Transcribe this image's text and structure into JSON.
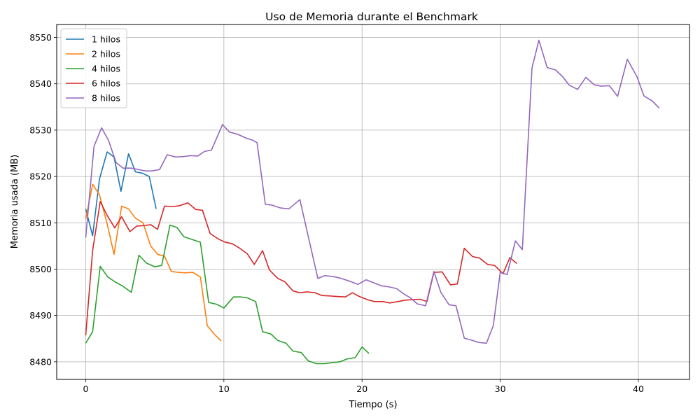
{
  "chart_data": {
    "type": "line",
    "title": "Uso de Memoria durante el Benchmark",
    "xlabel": "Tiempo (s)",
    "ylabel": "Memoria usada (MB)",
    "xlim": [
      -2.1,
      43.7
    ],
    "ylim": [
      8476.2,
      8552.8
    ],
    "xticks": [
      0,
      10,
      20,
      30,
      40
    ],
    "yticks": [
      8480,
      8490,
      8500,
      8510,
      8520,
      8530,
      8540,
      8550
    ],
    "grid": true,
    "legend_position": "top-left",
    "series": [
      {
        "name": "1 hilos",
        "color": "#1f77b4",
        "points": [
          [
            0,
            8513
          ],
          [
            0.5,
            8507.2
          ],
          [
            1.0,
            8519.5
          ],
          [
            1.55,
            8525.3
          ],
          [
            2.05,
            8524.2
          ],
          [
            2.55,
            8516.8
          ],
          [
            3.1,
            8524.9
          ],
          [
            3.6,
            8521
          ],
          [
            4.1,
            8520.7
          ],
          [
            4.6,
            8520
          ],
          [
            5.1,
            8513
          ]
        ]
      },
      {
        "name": "2 hilos",
        "color": "#ff7f0e",
        "points": [
          [
            0,
            8510.8
          ],
          [
            0.5,
            8518.3
          ],
          [
            1.0,
            8516
          ],
          [
            1.55,
            8509.8
          ],
          [
            2.05,
            8503.2
          ],
          [
            2.6,
            8513.6
          ],
          [
            3.1,
            8513
          ],
          [
            3.6,
            8511
          ],
          [
            4.15,
            8510
          ],
          [
            4.7,
            8505
          ],
          [
            5.2,
            8503.2
          ],
          [
            5.7,
            8502.8
          ],
          [
            6.2,
            8499.5
          ],
          [
            6.7,
            8499.3
          ],
          [
            7.2,
            8499.2
          ],
          [
            7.75,
            8499.3
          ],
          [
            8.3,
            8498.3
          ],
          [
            8.8,
            8487.8
          ],
          [
            9.3,
            8486
          ],
          [
            9.8,
            8484.5
          ]
        ]
      },
      {
        "name": "4 hilos",
        "color": "#2ca02c",
        "points": [
          [
            0,
            8484
          ],
          [
            0.5,
            8486.5
          ],
          [
            1.05,
            8500.6
          ],
          [
            1.6,
            8498.3
          ],
          [
            2.15,
            8497.2
          ],
          [
            2.7,
            8496.3
          ],
          [
            3.3,
            8495
          ],
          [
            3.85,
            8503
          ],
          [
            4.4,
            8501.3
          ],
          [
            5.0,
            8500.5
          ],
          [
            5.5,
            8500.8
          ],
          [
            6.1,
            8509.5
          ],
          [
            6.6,
            8509
          ],
          [
            7.1,
            8507
          ],
          [
            7.7,
            8506.4
          ],
          [
            8.3,
            8505.8
          ],
          [
            8.9,
            8492.8
          ],
          [
            9.5,
            8492.4
          ],
          [
            10.0,
            8491.6
          ],
          [
            10.7,
            8494
          ],
          [
            11.2,
            8494
          ],
          [
            11.7,
            8493.8
          ],
          [
            12.3,
            8493
          ],
          [
            12.8,
            8486.5
          ],
          [
            13.4,
            8486
          ],
          [
            13.9,
            8484.6
          ],
          [
            14.5,
            8484
          ],
          [
            15.0,
            8482.3
          ],
          [
            15.6,
            8482
          ],
          [
            16.1,
            8480.2
          ],
          [
            16.7,
            8479.6
          ],
          [
            17.3,
            8479.6
          ],
          [
            17.8,
            8479.8
          ],
          [
            18.4,
            8480
          ],
          [
            18.9,
            8480.6
          ],
          [
            19.5,
            8480.9
          ],
          [
            20.0,
            8483.2
          ],
          [
            20.5,
            8481.8
          ]
        ]
      },
      {
        "name": "6 hilos",
        "color": "#d62728",
        "points": [
          [
            0,
            8485.7
          ],
          [
            0.5,
            8504
          ],
          [
            1.05,
            8514.6
          ],
          [
            1.55,
            8511.6
          ],
          [
            2.1,
            8508.9
          ],
          [
            2.6,
            8511.3
          ],
          [
            3.2,
            8508.1
          ],
          [
            3.7,
            8509.3
          ],
          [
            4.25,
            8509.4
          ],
          [
            4.7,
            8509.6
          ],
          [
            5.2,
            8508.6
          ],
          [
            5.7,
            8513.6
          ],
          [
            6.3,
            8513.5
          ],
          [
            6.8,
            8513.7
          ],
          [
            7.4,
            8514.3
          ],
          [
            7.95,
            8512.9
          ],
          [
            8.45,
            8512.7
          ],
          [
            9.0,
            8507.7
          ],
          [
            9.6,
            8506.5
          ],
          [
            10.1,
            8505.8
          ],
          [
            10.6,
            8505.5
          ],
          [
            11.1,
            8504.6
          ],
          [
            11.7,
            8503.3
          ],
          [
            12.2,
            8501
          ],
          [
            12.8,
            8504
          ],
          [
            13.3,
            8499.8
          ],
          [
            13.9,
            8498
          ],
          [
            14.4,
            8497.3
          ],
          [
            15.0,
            8495.3
          ],
          [
            15.5,
            8494.9
          ],
          [
            16.0,
            8495.1
          ],
          [
            16.6,
            8494.9
          ],
          [
            17.1,
            8494.3
          ],
          [
            17.7,
            8494.2
          ],
          [
            18.2,
            8494.1
          ],
          [
            18.8,
            8494
          ],
          [
            19.3,
            8494.9
          ],
          [
            19.8,
            8494.1
          ],
          [
            20.4,
            8493.4
          ],
          [
            20.9,
            8493
          ],
          [
            21.5,
            8493
          ],
          [
            22.0,
            8492.7
          ],
          [
            22.6,
            8493
          ],
          [
            23.1,
            8493.3
          ],
          [
            23.6,
            8493.4
          ],
          [
            24.2,
            8493.5
          ],
          [
            24.7,
            8493
          ],
          [
            25.2,
            8499.3
          ],
          [
            25.8,
            8499.4
          ],
          [
            26.4,
            8496.6
          ],
          [
            26.9,
            8496.8
          ],
          [
            27.4,
            8504.5
          ],
          [
            28.0,
            8502.7
          ],
          [
            28.5,
            8502.4
          ],
          [
            29.1,
            8501
          ],
          [
            29.6,
            8500.8
          ],
          [
            30.2,
            8499
          ],
          [
            30.7,
            8502.5
          ],
          [
            31.2,
            8501.2
          ]
        ]
      },
      {
        "name": "8 hilos",
        "color": "#9467bd",
        "points": [
          [
            0,
            8506.8
          ],
          [
            0.6,
            8526.5
          ],
          [
            1.15,
            8530.5
          ],
          [
            1.65,
            8527.8
          ],
          [
            2.2,
            8523
          ],
          [
            2.7,
            8521.8
          ],
          [
            3.3,
            8521.8
          ],
          [
            3.8,
            8521.5
          ],
          [
            4.3,
            8521.2
          ],
          [
            4.8,
            8521.2
          ],
          [
            5.35,
            8521.5
          ],
          [
            5.9,
            8524.7
          ],
          [
            6.5,
            8524.2
          ],
          [
            7.1,
            8524.3
          ],
          [
            7.6,
            8524.5
          ],
          [
            8.1,
            8524.4
          ],
          [
            8.6,
            8525.4
          ],
          [
            9.1,
            8525.7
          ],
          [
            9.9,
            8531.2
          ],
          [
            10.4,
            8529.6
          ],
          [
            11.0,
            8529.1
          ],
          [
            11.6,
            8528.3
          ],
          [
            12.1,
            8527.8
          ],
          [
            12.4,
            8527.3
          ],
          [
            13.0,
            8514
          ],
          [
            13.5,
            8513.8
          ],
          [
            14.1,
            8513.2
          ],
          [
            14.7,
            8513
          ],
          [
            15.5,
            8515
          ],
          [
            16.8,
            8498
          ],
          [
            17.3,
            8498.6
          ],
          [
            17.9,
            8498.4
          ],
          [
            18.5,
            8498
          ],
          [
            19.1,
            8497.4
          ],
          [
            19.7,
            8496.7
          ],
          [
            20.3,
            8497.7
          ],
          [
            20.8,
            8497.1
          ],
          [
            21.4,
            8496.4
          ],
          [
            21.9,
            8496.2
          ],
          [
            22.5,
            8495.8
          ],
          [
            23.0,
            8494.7
          ],
          [
            23.5,
            8493.8
          ],
          [
            24.0,
            8492.5
          ],
          [
            24.6,
            8492.1
          ],
          [
            25.2,
            8499.5
          ],
          [
            25.7,
            8495
          ],
          [
            26.3,
            8492.3
          ],
          [
            26.8,
            8492.1
          ],
          [
            27.4,
            8485.1
          ],
          [
            27.9,
            8484.7
          ],
          [
            28.4,
            8484.2
          ],
          [
            29.0,
            8484
          ],
          [
            29.5,
            8487.8
          ],
          [
            30.0,
            8499.3
          ],
          [
            30.5,
            8498.8
          ],
          [
            31.1,
            8506.1
          ],
          [
            31.6,
            8504.2
          ],
          [
            32.3,
            8543.4
          ],
          [
            32.8,
            8549.4
          ],
          [
            33.4,
            8543.5
          ],
          [
            34.0,
            8543
          ],
          [
            34.5,
            8541.6
          ],
          [
            35.0,
            8539.7
          ],
          [
            35.6,
            8538.8
          ],
          [
            36.2,
            8541.4
          ],
          [
            36.8,
            8539.8
          ],
          [
            37.3,
            8539.5
          ],
          [
            37.9,
            8539.6
          ],
          [
            38.5,
            8537.3
          ],
          [
            39.2,
            8545.3
          ],
          [
            39.9,
            8541.5
          ],
          [
            40.4,
            8537.4
          ],
          [
            41.0,
            8536.3
          ],
          [
            41.5,
            8534.8
          ]
        ]
      }
    ]
  }
}
